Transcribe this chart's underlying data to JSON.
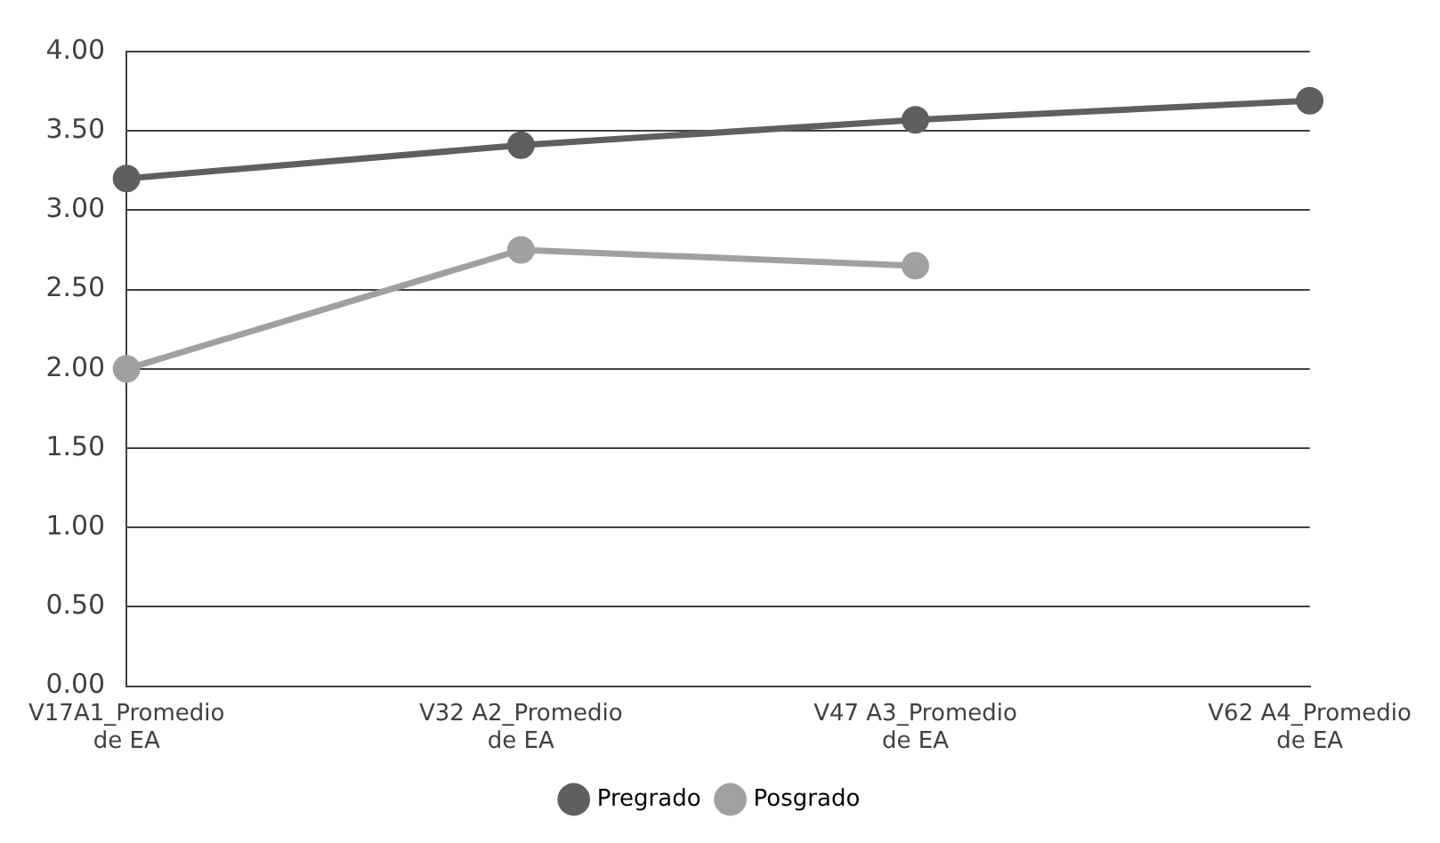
{
  "chart_data": {
    "type": "line",
    "categories": [
      "V17A1_Promedio de EA",
      "V32 A2_Promedio de EA",
      "V47 A3_Promedio de EA",
      "V62 A4_Promedio de EA"
    ],
    "series": [
      {
        "name": "Pregrado",
        "color": "#5f5f5f",
        "values": [
          3.2,
          3.41,
          3.57,
          3.69
        ]
      },
      {
        "name": "Posgrado",
        "color": "#a0a0a0",
        "values": [
          2.0,
          2.75,
          2.65,
          null
        ]
      }
    ],
    "ylim": [
      0,
      4
    ],
    "yticks": [
      {
        "value": 0,
        "label": "0.00"
      },
      {
        "value": 0.5,
        "label": "0.50"
      },
      {
        "value": 1,
        "label": "1.00"
      },
      {
        "value": 1.5,
        "label": "1.50"
      },
      {
        "value": 2,
        "label": "2.00"
      },
      {
        "value": 2.5,
        "label": "2.50"
      },
      {
        "value": 3,
        "label": "3.00"
      },
      {
        "value": 3.5,
        "label": "3.50"
      },
      {
        "value": 4,
        "label": "4.00"
      }
    ],
    "grid": "y",
    "legend": "bottom",
    "marker": "circle",
    "line_style": "solid"
  }
}
